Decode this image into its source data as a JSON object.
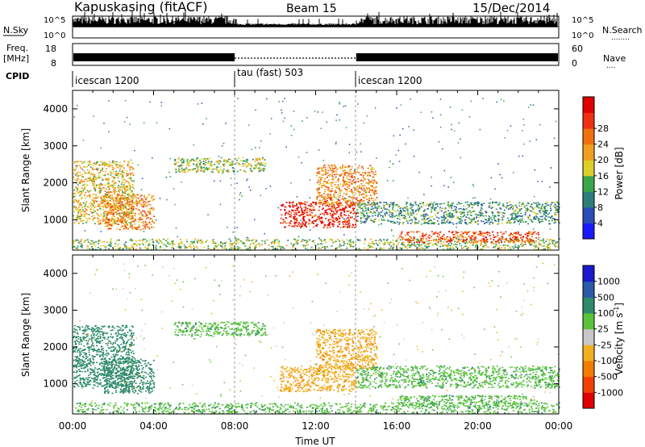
{
  "header": {
    "station": "Kapuskasing (fitACF)",
    "beam": "Beam 15",
    "date": "15/Dec/2014"
  },
  "nsky_panel": {
    "left_label": "N.Sky",
    "left_ticks": [
      "10^5",
      "10^0"
    ],
    "right_ticks": [
      "10^5",
      "10^0"
    ],
    "right_label": "N.Search",
    "right_dots": "........"
  },
  "freq_panel": {
    "left_label_1": "Freq.",
    "left_label_2": "[MHz]",
    "left_ticks": [
      "18",
      "8"
    ],
    "right_ticks": [
      "60",
      "0"
    ],
    "right_label": "Nave",
    "right_dots": "...."
  },
  "cpid": {
    "label": "CPID",
    "segments": [
      {
        "name": "icescan 1200",
        "start_h": 0,
        "end_h": 8
      },
      {
        "name": "tau (fast) 503",
        "start_h": 8,
        "end_h": 14
      },
      {
        "name": "icescan 1200",
        "start_h": 14,
        "end_h": 24
      }
    ]
  },
  "x_axis": {
    "label": "Time UT",
    "range_h": [
      0,
      24
    ],
    "ticks": [
      "00:00",
      "04:00",
      "08:00",
      "12:00",
      "16:00",
      "20:00",
      "00:00"
    ]
  },
  "y_axis": {
    "label": "Slant Range [km]",
    "range_km": [
      180,
      4500
    ],
    "ticks": [
      "1000",
      "2000",
      "3000",
      "4000"
    ]
  },
  "power_scale": {
    "label": "Power [dB]",
    "ticks": [
      "4",
      "8",
      "12",
      "16",
      "20",
      "24",
      "28"
    ],
    "colors": [
      "#1a1aff",
      "#2a4db5",
      "#2e7d7d",
      "#3aa64a",
      "#dccf2a",
      "#f0a020",
      "#f07010",
      "#ee3010",
      "#e00000"
    ]
  },
  "velocity_scale": {
    "label": "Velocity [m s",
    "label_exp": "-1",
    "label_end": "]",
    "ticks": [
      "1000",
      "500",
      "100",
      "25",
      "-25",
      "-100",
      "-500",
      "-1000"
    ],
    "colors": [
      "#1a1acc",
      "#2a5aa8",
      "#2e8a6a",
      "#59c43a",
      "#c8c8c8",
      "#f0b020",
      "#f07c00",
      "#f04000",
      "#e00000"
    ]
  },
  "chart_data": {
    "type": "heatmap",
    "title": "Kapuskasing (fitACF) Beam 15 15/Dec/2014",
    "xlabel": "Time UT",
    "ylabel": "Slant Range [km]",
    "xlim_hours": [
      0,
      24
    ],
    "ylim_km": [
      180,
      4500
    ],
    "mode_changes_hours": [
      8,
      14
    ],
    "echo_regions": [
      {
        "name": "near-range band",
        "start_h": 0,
        "end_h": 24,
        "range_km": [
          200,
          500
        ],
        "power_db": 12,
        "velocity": 25
      },
      {
        "name": "early diagonal rising",
        "start_h": 0,
        "end_h": 3,
        "range_km": [
          900,
          2600
        ],
        "power_db": 16,
        "velocity": 100
      },
      {
        "name": "early descending arc",
        "start_h": 1.5,
        "end_h": 4,
        "range_km": [
          750,
          1700
        ],
        "power_db": 20,
        "velocity": 100
      },
      {
        "name": "arc 2300-2700 km",
        "start_h": 5,
        "end_h": 9.5,
        "range_km": [
          2300,
          2700
        ],
        "power_db": 12,
        "velocity": 25
      },
      {
        "name": "strong echo 11-14 UT",
        "start_h": 10.2,
        "end_h": 14,
        "range_km": [
          800,
          1500
        ],
        "power_db": 28,
        "velocity": -100
      },
      {
        "name": "diagonal 12-15 UT",
        "start_h": 12,
        "end_h": 15,
        "range_km": [
          1400,
          2500
        ],
        "power_db": 20,
        "velocity": -100
      },
      {
        "name": "afternoon bands",
        "start_h": 14,
        "end_h": 24,
        "range_km": [
          900,
          1500
        ],
        "power_db": 8,
        "velocity": 25
      },
      {
        "name": "afternoon lower arc",
        "start_h": 16,
        "end_h": 23,
        "range_km": [
          400,
          700
        ],
        "power_db": 24,
        "velocity": 25
      }
    ]
  }
}
